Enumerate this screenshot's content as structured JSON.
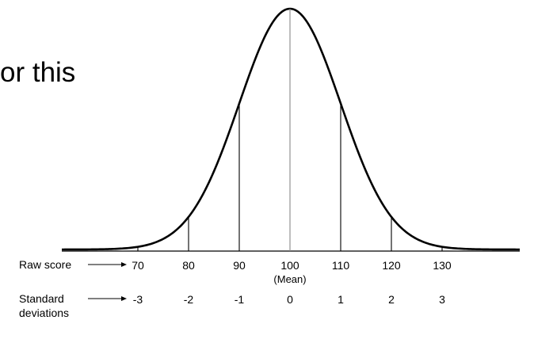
{
  "slide": {
    "partial_text": "or this"
  },
  "diagram": {
    "raw_score_label": "Raw score",
    "std_dev_label_line1": "Standard",
    "std_dev_label_line2": "deviations",
    "mean_label": "(Mean)",
    "raw_scores": [
      "70",
      "80",
      "90",
      "100",
      "110",
      "120",
      "130"
    ],
    "std_devs": [
      "-3",
      "-2",
      "-1",
      "0",
      "1",
      "2",
      "3"
    ],
    "colors": {
      "curve": "#000000",
      "lines": "#000000",
      "center_line": "#888888"
    }
  }
}
